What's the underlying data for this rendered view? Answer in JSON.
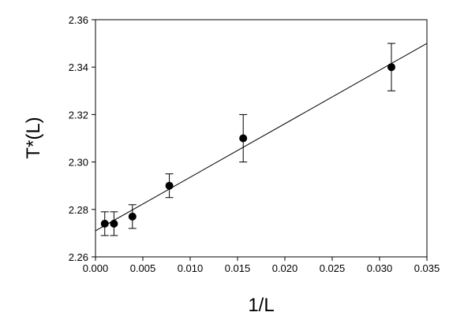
{
  "chart_data": {
    "type": "scatter",
    "xlabel": "1/L",
    "ylabel": "T*(L)",
    "xlim": [
      0.0,
      0.035
    ],
    "ylim": [
      2.26,
      2.36
    ],
    "x_ticks": [
      0.0,
      0.005,
      0.01,
      0.015,
      0.02,
      0.025,
      0.03,
      0.035
    ],
    "x_tick_labels": [
      "0.000",
      "0.005",
      "0.010",
      "0.015",
      "0.020",
      "0.025",
      "0.030",
      "0.035"
    ],
    "y_ticks": [
      2.26,
      2.28,
      2.3,
      2.32,
      2.34,
      2.36
    ],
    "y_tick_labels": [
      "2.26",
      "2.28",
      "2.30",
      "2.32",
      "2.34",
      "2.36"
    ],
    "grid": false,
    "series": [
      {
        "points": [
          {
            "x": 0.00098,
            "y": 2.274,
            "err": 0.005
          },
          {
            "x": 0.00195,
            "y": 2.274,
            "err": 0.005
          },
          {
            "x": 0.0039,
            "y": 2.277,
            "err": 0.005
          },
          {
            "x": 0.0078,
            "y": 2.29,
            "err": 0.005
          },
          {
            "x": 0.0156,
            "y": 2.31,
            "err": 0.01
          },
          {
            "x": 0.03125,
            "y": 2.34,
            "err": 0.01
          }
        ]
      }
    ],
    "fit_line": {
      "x": [
        0.0,
        0.035
      ],
      "y": [
        2.271,
        2.35
      ]
    },
    "colors": {
      "marker": "#000000",
      "line": "#000000",
      "axis": "#000000"
    }
  }
}
